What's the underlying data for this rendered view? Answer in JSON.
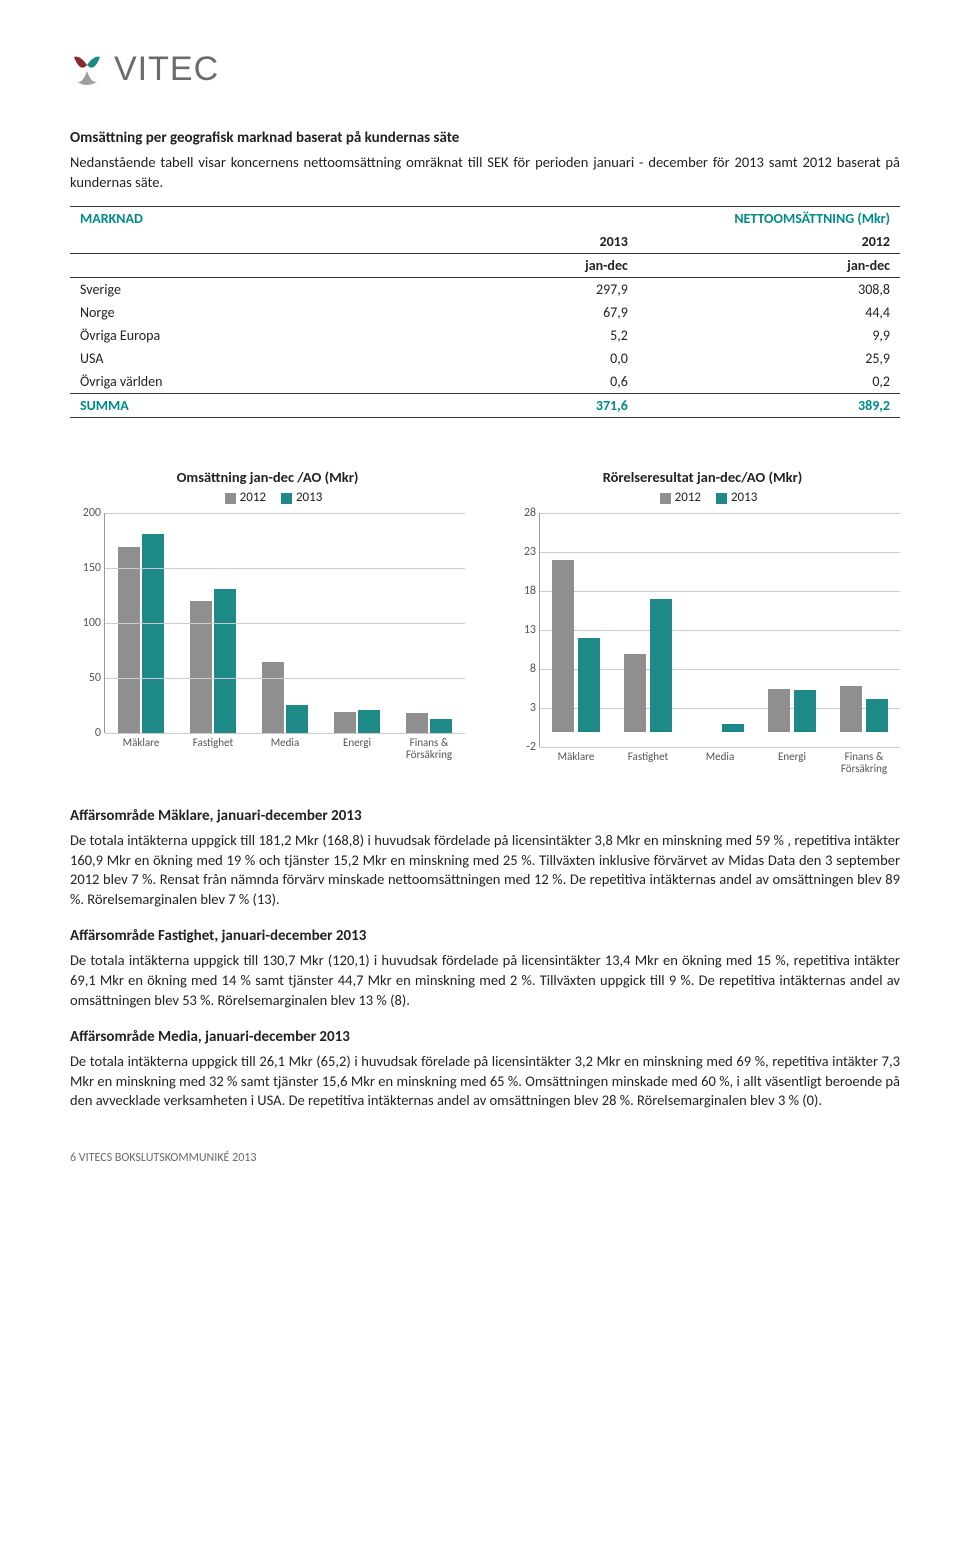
{
  "logo": {
    "text": "VITEC"
  },
  "intro": {
    "heading": "Omsättning per geografisk marknad baserat på kundernas säte",
    "text": "Nedanstående tabell visar koncernens nettoomsättning omräknat till SEK för perioden januari - december för 2013 samt 2012 baserat på kundernas säte."
  },
  "market_table": {
    "header_left": "MARKNAD",
    "header_right": "NETTOOMSÄTTNING (Mkr)",
    "col_years": [
      "2013",
      "2012"
    ],
    "col_period": [
      "jan-dec",
      "jan-dec"
    ],
    "rows": [
      {
        "label": "Sverige",
        "v1": "297,9",
        "v2": "308,8"
      },
      {
        "label": "Norge",
        "v1": "67,9",
        "v2": "44,4"
      },
      {
        "label": "Övriga Europa",
        "v1": "5,2",
        "v2": "9,9"
      },
      {
        "label": "USA",
        "v1": "0,0",
        "v2": "25,9"
      },
      {
        "label": "Övriga världen",
        "v1": "0,6",
        "v2": "0,2"
      }
    ],
    "summary": {
      "label": "SUMMA",
      "v1": "371,6",
      "v2": "389,2"
    }
  },
  "chart_colors": {
    "y2012": "#8f8f8f",
    "y2013": "#1d8a88",
    "grid": "#cccccc"
  },
  "chart1": {
    "title": "Omsättning jan-dec /AO (Mkr)",
    "legend": [
      "2012",
      "2013"
    ],
    "y_ticks": [
      0,
      50,
      100,
      150,
      200
    ],
    "ymax": 200,
    "categories": [
      "Mäklare",
      "Fastighet",
      "Media",
      "Energi",
      "Finans &\nFörsäkring"
    ],
    "series_2012": [
      169,
      120,
      65,
      19,
      18
    ],
    "series_2013": [
      181,
      131,
      26,
      21,
      13
    ]
  },
  "chart2": {
    "title": "Rörelseresultat jan-dec/AO (Mkr)",
    "legend": [
      "2012",
      "2013"
    ],
    "y_ticks": [
      -2,
      3,
      8,
      13,
      18,
      23,
      28
    ],
    "ymin": -2,
    "ymax": 28,
    "categories": [
      "Mäklare",
      "Fastighet",
      "Media",
      "Energi",
      "Finans &\nFörsäkring"
    ],
    "series_2012": [
      22,
      10,
      0,
      5.5,
      5.8
    ],
    "series_2013": [
      12,
      17,
      1,
      5.3,
      4.2
    ]
  },
  "sections": [
    {
      "heading": "Affärsområde Mäklare, januari-december 2013",
      "text": "De totala intäkterna uppgick till 181,2 Mkr (168,8) i huvudsak fördelade på licensintäkter 3,8 Mkr en minskning med 59 % , repetitiva intäkter 160,9 Mkr en ökning med 19 % och tjänster 15,2 Mkr en minskning med 25 %. Tillväxten inklusive förvärvet av Midas Data den 3 september 2012 blev 7 %. Rensat från nämnda förvärv minskade nettoomsättningen med 12 %. De repetitiva intäkternas andel av omsättningen blev 89 %. Rörelsemarginalen blev 7 % (13)."
    },
    {
      "heading": "Affärsområde Fastighet, januari-december 2013",
      "text": "De totala intäkterna uppgick till 130,7 Mkr (120,1) i huvudsak fördelade på licensintäkter 13,4 Mkr en ökning med 15 %, repetitiva intäkter 69,1 Mkr en ökning med 14 % samt tjänster 44,7 Mkr en minskning med 2 %. Tillväxten uppgick till 9 %. De repetitiva intäkternas andel av omsättningen blev 53 %. Rörelsemarginalen blev 13 % (8)."
    },
    {
      "heading": "Affärsområde Media, januari-december 2013",
      "text": "De totala intäkterna uppgick till 26,1 Mkr (65,2) i huvudsak förelade på licensintäkter 3,2 Mkr en minskning med 69 %, repetitiva intäkter 7,3 Mkr en minskning med 32 % samt tjänster 15,6 Mkr en minskning med 65 %. Omsättningen minskade med 60 %, i allt väsentligt beroende på den avvecklade verksamheten i USA. De repetitiva intäkternas andel av omsättningen blev 28 %. Rörelsemarginalen blev 3 % (0)."
    }
  ],
  "footer": "6  VITECS BOKSLUTSKOMMUNIKÉ 2013"
}
